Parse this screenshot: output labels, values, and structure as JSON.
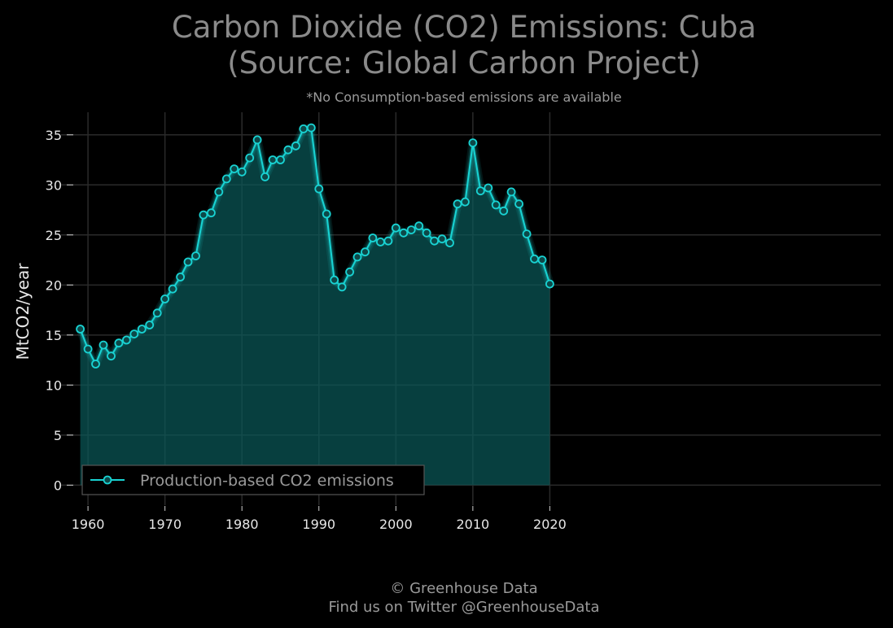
{
  "chart_data": {
    "type": "area",
    "title_line1": "Carbon Dioxide (CO2) Emissions: Cuba",
    "title_line2": "(Source: Global Carbon Project)",
    "subtitle": "*No Consumption-based emissions are available",
    "xlabel": "",
    "ylabel": "MtCO2/year",
    "xlim": [
      1956.5,
      2063.0
    ],
    "ylim": [
      -2.0,
      37.5
    ],
    "x_ticks": [
      1960,
      1970,
      1980,
      1990,
      2000,
      2010,
      2020
    ],
    "y_ticks": [
      0,
      5,
      10,
      15,
      20,
      25,
      30,
      35
    ],
    "grid": true,
    "legend_position": "bottom-left",
    "series": [
      {
        "name": "Production-based CO2 emissions",
        "color": "#19d3d3",
        "x": [
          1959,
          1960,
          1961,
          1962,
          1963,
          1964,
          1965,
          1966,
          1967,
          1968,
          1969,
          1970,
          1971,
          1972,
          1973,
          1974,
          1975,
          1976,
          1977,
          1978,
          1979,
          1980,
          1981,
          1982,
          1983,
          1984,
          1985,
          1986,
          1987,
          1988,
          1989,
          1990,
          1991,
          1992,
          1993,
          1994,
          1995,
          1996,
          1997,
          1998,
          1999,
          2000,
          2001,
          2002,
          2003,
          2004,
          2005,
          2006,
          2007,
          2008,
          2009,
          2010,
          2011,
          2012,
          2013,
          2014,
          2015,
          2016,
          2017,
          2018,
          2019,
          2020
        ],
        "y": [
          15.6,
          13.6,
          12.1,
          14.0,
          12.9,
          14.2,
          14.5,
          15.1,
          15.6,
          16.0,
          17.2,
          18.6,
          19.6,
          20.8,
          22.3,
          22.9,
          27.0,
          27.2,
          29.3,
          30.6,
          31.6,
          31.3,
          32.7,
          34.5,
          30.8,
          32.5,
          32.5,
          33.5,
          33.9,
          35.6,
          35.7,
          29.6,
          27.1,
          20.5,
          19.8,
          21.3,
          22.8,
          23.3,
          24.7,
          24.3,
          24.4,
          25.7,
          25.2,
          25.5,
          25.9,
          25.2,
          24.4,
          24.6,
          24.2,
          28.1,
          28.3,
          34.2,
          29.4,
          29.7,
          28.0,
          27.4,
          29.3,
          28.1,
          25.1,
          22.6,
          22.5,
          20.1
        ]
      }
    ]
  },
  "footer": {
    "line1": "© Greenhouse Data",
    "line2": "Find us on Twitter @GreenhouseData"
  }
}
